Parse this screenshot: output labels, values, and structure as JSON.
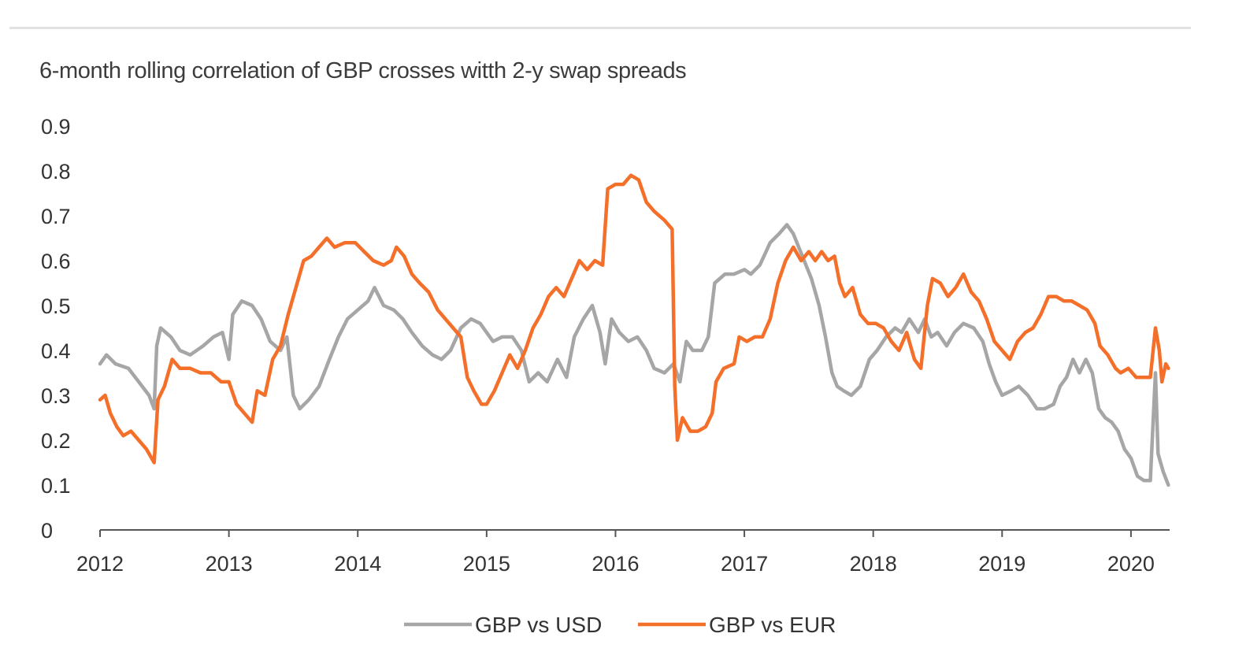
{
  "chart_data": {
    "type": "line",
    "title": "6-month rolling correlation of GBP crosses witth 2-y swap spreads",
    "xlabel": "",
    "ylabel": "",
    "xlim": [
      2012.0,
      2020.3
    ],
    "ylim": [
      0,
      0.9
    ],
    "x_ticks": [
      2012,
      2013,
      2014,
      2015,
      2016,
      2017,
      2018,
      2019,
      2020
    ],
    "x_tick_labels": [
      "2012",
      "2013",
      "2014",
      "2015",
      "2016",
      "2017",
      "2018",
      "2019",
      "2020"
    ],
    "y_ticks": [
      0,
      0.1,
      0.2,
      0.3,
      0.4,
      0.5,
      0.6,
      0.7,
      0.8,
      0.9
    ],
    "y_tick_labels": [
      "0",
      "0.1",
      "0.2",
      "0.3",
      "0.4",
      "0.5",
      "0.6",
      "0.7",
      "0.8",
      "0.9"
    ],
    "grid": false,
    "legend_position": "bottom",
    "series": [
      {
        "name": "GBP vs USD",
        "color": "#a6a6a6",
        "points": [
          [
            2012.0,
            0.37
          ],
          [
            2012.05,
            0.39
          ],
          [
            2012.12,
            0.37
          ],
          [
            2012.22,
            0.36
          ],
          [
            2012.3,
            0.33
          ],
          [
            2012.38,
            0.3
          ],
          [
            2012.42,
            0.27
          ],
          [
            2012.44,
            0.41
          ],
          [
            2012.47,
            0.45
          ],
          [
            2012.55,
            0.43
          ],
          [
            2012.62,
            0.4
          ],
          [
            2012.7,
            0.39
          ],
          [
            2012.8,
            0.41
          ],
          [
            2012.88,
            0.43
          ],
          [
            2012.95,
            0.44
          ],
          [
            2013.0,
            0.38
          ],
          [
            2013.03,
            0.48
          ],
          [
            2013.1,
            0.51
          ],
          [
            2013.18,
            0.5
          ],
          [
            2013.25,
            0.47
          ],
          [
            2013.32,
            0.42
          ],
          [
            2013.4,
            0.4
          ],
          [
            2013.45,
            0.43
          ],
          [
            2013.5,
            0.3
          ],
          [
            2013.55,
            0.27
          ],
          [
            2013.62,
            0.29
          ],
          [
            2013.7,
            0.32
          ],
          [
            2013.78,
            0.38
          ],
          [
            2013.85,
            0.43
          ],
          [
            2013.92,
            0.47
          ],
          [
            2014.0,
            0.49
          ],
          [
            2014.08,
            0.51
          ],
          [
            2014.13,
            0.54
          ],
          [
            2014.2,
            0.5
          ],
          [
            2014.28,
            0.49
          ],
          [
            2014.35,
            0.47
          ],
          [
            2014.42,
            0.44
          ],
          [
            2014.5,
            0.41
          ],
          [
            2014.58,
            0.39
          ],
          [
            2014.65,
            0.38
          ],
          [
            2014.72,
            0.4
          ],
          [
            2014.8,
            0.45
          ],
          [
            2014.88,
            0.47
          ],
          [
            2014.95,
            0.46
          ],
          [
            2015.0,
            0.44
          ],
          [
            2015.05,
            0.42
          ],
          [
            2015.12,
            0.43
          ],
          [
            2015.2,
            0.43
          ],
          [
            2015.27,
            0.4
          ],
          [
            2015.33,
            0.33
          ],
          [
            2015.4,
            0.35
          ],
          [
            2015.47,
            0.33
          ],
          [
            2015.55,
            0.38
          ],
          [
            2015.62,
            0.34
          ],
          [
            2015.68,
            0.43
          ],
          [
            2015.75,
            0.47
          ],
          [
            2015.82,
            0.5
          ],
          [
            2015.88,
            0.44
          ],
          [
            2015.92,
            0.37
          ],
          [
            2015.97,
            0.47
          ],
          [
            2016.03,
            0.44
          ],
          [
            2016.1,
            0.42
          ],
          [
            2016.17,
            0.43
          ],
          [
            2016.24,
            0.4
          ],
          [
            2016.3,
            0.36
          ],
          [
            2016.38,
            0.35
          ],
          [
            2016.45,
            0.37
          ],
          [
            2016.5,
            0.33
          ],
          [
            2016.55,
            0.42
          ],
          [
            2016.6,
            0.4
          ],
          [
            2016.67,
            0.4
          ],
          [
            2016.72,
            0.43
          ],
          [
            2016.77,
            0.55
          ],
          [
            2016.85,
            0.57
          ],
          [
            2016.92,
            0.57
          ],
          [
            2017.0,
            0.58
          ],
          [
            2017.05,
            0.57
          ],
          [
            2017.12,
            0.59
          ],
          [
            2017.2,
            0.64
          ],
          [
            2017.27,
            0.66
          ],
          [
            2017.33,
            0.68
          ],
          [
            2017.38,
            0.66
          ],
          [
            2017.45,
            0.61
          ],
          [
            2017.52,
            0.56
          ],
          [
            2017.58,
            0.5
          ],
          [
            2017.63,
            0.43
          ],
          [
            2017.68,
            0.35
          ],
          [
            2017.72,
            0.32
          ],
          [
            2017.77,
            0.31
          ],
          [
            2017.83,
            0.3
          ],
          [
            2017.9,
            0.32
          ],
          [
            2017.97,
            0.38
          ],
          [
            2018.03,
            0.4
          ],
          [
            2018.1,
            0.43
          ],
          [
            2018.17,
            0.45
          ],
          [
            2018.22,
            0.44
          ],
          [
            2018.28,
            0.47
          ],
          [
            2018.35,
            0.44
          ],
          [
            2018.4,
            0.47
          ],
          [
            2018.45,
            0.43
          ],
          [
            2018.5,
            0.44
          ],
          [
            2018.57,
            0.41
          ],
          [
            2018.63,
            0.44
          ],
          [
            2018.7,
            0.46
          ],
          [
            2018.78,
            0.45
          ],
          [
            2018.85,
            0.42
          ],
          [
            2018.9,
            0.37
          ],
          [
            2018.95,
            0.33
          ],
          [
            2019.0,
            0.3
          ],
          [
            2019.07,
            0.31
          ],
          [
            2019.13,
            0.32
          ],
          [
            2019.2,
            0.3
          ],
          [
            2019.27,
            0.27
          ],
          [
            2019.33,
            0.27
          ],
          [
            2019.4,
            0.28
          ],
          [
            2019.45,
            0.32
          ],
          [
            2019.5,
            0.34
          ],
          [
            2019.55,
            0.38
          ],
          [
            2019.6,
            0.35
          ],
          [
            2019.65,
            0.38
          ],
          [
            2019.7,
            0.35
          ],
          [
            2019.75,
            0.27
          ],
          [
            2019.8,
            0.25
          ],
          [
            2019.85,
            0.24
          ],
          [
            2019.9,
            0.22
          ],
          [
            2019.95,
            0.18
          ],
          [
            2020.0,
            0.16
          ],
          [
            2020.05,
            0.12
          ],
          [
            2020.1,
            0.11
          ],
          [
            2020.15,
            0.11
          ],
          [
            2020.19,
            0.35
          ],
          [
            2020.21,
            0.17
          ],
          [
            2020.25,
            0.13
          ],
          [
            2020.29,
            0.1
          ]
        ]
      },
      {
        "name": "GBP vs EUR",
        "color": "#f4702a",
        "points": [
          [
            2012.0,
            0.29
          ],
          [
            2012.04,
            0.3
          ],
          [
            2012.08,
            0.26
          ],
          [
            2012.13,
            0.23
          ],
          [
            2012.18,
            0.21
          ],
          [
            2012.24,
            0.22
          ],
          [
            2012.3,
            0.2
          ],
          [
            2012.36,
            0.18
          ],
          [
            2012.42,
            0.15
          ],
          [
            2012.45,
            0.29
          ],
          [
            2012.5,
            0.32
          ],
          [
            2012.56,
            0.38
          ],
          [
            2012.62,
            0.36
          ],
          [
            2012.7,
            0.36
          ],
          [
            2012.78,
            0.35
          ],
          [
            2012.86,
            0.35
          ],
          [
            2012.94,
            0.33
          ],
          [
            2013.0,
            0.33
          ],
          [
            2013.06,
            0.28
          ],
          [
            2013.12,
            0.26
          ],
          [
            2013.18,
            0.24
          ],
          [
            2013.22,
            0.31
          ],
          [
            2013.28,
            0.3
          ],
          [
            2013.34,
            0.38
          ],
          [
            2013.4,
            0.41
          ],
          [
            2013.46,
            0.48
          ],
          [
            2013.52,
            0.54
          ],
          [
            2013.58,
            0.6
          ],
          [
            2013.64,
            0.61
          ],
          [
            2013.7,
            0.63
          ],
          [
            2013.76,
            0.65
          ],
          [
            2013.82,
            0.63
          ],
          [
            2013.9,
            0.64
          ],
          [
            2013.98,
            0.64
          ],
          [
            2014.05,
            0.62
          ],
          [
            2014.12,
            0.6
          ],
          [
            2014.2,
            0.59
          ],
          [
            2014.26,
            0.6
          ],
          [
            2014.3,
            0.63
          ],
          [
            2014.36,
            0.61
          ],
          [
            2014.42,
            0.57
          ],
          [
            2014.48,
            0.55
          ],
          [
            2014.55,
            0.53
          ],
          [
            2014.62,
            0.49
          ],
          [
            2014.68,
            0.47
          ],
          [
            2014.74,
            0.45
          ],
          [
            2014.8,
            0.43
          ],
          [
            2014.85,
            0.34
          ],
          [
            2014.9,
            0.31
          ],
          [
            2014.96,
            0.28
          ],
          [
            2015.0,
            0.28
          ],
          [
            2015.06,
            0.31
          ],
          [
            2015.12,
            0.35
          ],
          [
            2015.18,
            0.39
          ],
          [
            2015.24,
            0.36
          ],
          [
            2015.3,
            0.4
          ],
          [
            2015.36,
            0.45
          ],
          [
            2015.42,
            0.48
          ],
          [
            2015.48,
            0.52
          ],
          [
            2015.54,
            0.54
          ],
          [
            2015.6,
            0.52
          ],
          [
            2015.66,
            0.56
          ],
          [
            2015.72,
            0.6
          ],
          [
            2015.78,
            0.58
          ],
          [
            2015.84,
            0.6
          ],
          [
            2015.9,
            0.59
          ],
          [
            2015.94,
            0.76
          ],
          [
            2016.0,
            0.77
          ],
          [
            2016.06,
            0.77
          ],
          [
            2016.12,
            0.79
          ],
          [
            2016.18,
            0.78
          ],
          [
            2016.24,
            0.73
          ],
          [
            2016.3,
            0.71
          ],
          [
            2016.38,
            0.69
          ],
          [
            2016.44,
            0.67
          ],
          [
            2016.46,
            0.32
          ],
          [
            2016.48,
            0.2
          ],
          [
            2016.52,
            0.25
          ],
          [
            2016.58,
            0.22
          ],
          [
            2016.64,
            0.22
          ],
          [
            2016.7,
            0.23
          ],
          [
            2016.75,
            0.26
          ],
          [
            2016.78,
            0.33
          ],
          [
            2016.84,
            0.36
          ],
          [
            2016.92,
            0.37
          ],
          [
            2016.96,
            0.43
          ],
          [
            2017.02,
            0.42
          ],
          [
            2017.08,
            0.43
          ],
          [
            2017.14,
            0.43
          ],
          [
            2017.2,
            0.47
          ],
          [
            2017.26,
            0.55
          ],
          [
            2017.32,
            0.6
          ],
          [
            2017.38,
            0.63
          ],
          [
            2017.44,
            0.6
          ],
          [
            2017.5,
            0.62
          ],
          [
            2017.55,
            0.6
          ],
          [
            2017.6,
            0.62
          ],
          [
            2017.65,
            0.6
          ],
          [
            2017.7,
            0.61
          ],
          [
            2017.74,
            0.55
          ],
          [
            2017.78,
            0.52
          ],
          [
            2017.84,
            0.54
          ],
          [
            2017.9,
            0.48
          ],
          [
            2017.96,
            0.46
          ],
          [
            2018.02,
            0.46
          ],
          [
            2018.08,
            0.45
          ],
          [
            2018.14,
            0.42
          ],
          [
            2018.2,
            0.4
          ],
          [
            2018.26,
            0.44
          ],
          [
            2018.32,
            0.38
          ],
          [
            2018.37,
            0.36
          ],
          [
            2018.42,
            0.5
          ],
          [
            2018.46,
            0.56
          ],
          [
            2018.52,
            0.55
          ],
          [
            2018.58,
            0.52
          ],
          [
            2018.64,
            0.54
          ],
          [
            2018.7,
            0.57
          ],
          [
            2018.76,
            0.53
          ],
          [
            2018.82,
            0.51
          ],
          [
            2018.88,
            0.47
          ],
          [
            2018.94,
            0.42
          ],
          [
            2019.0,
            0.4
          ],
          [
            2019.06,
            0.38
          ],
          [
            2019.12,
            0.42
          ],
          [
            2019.18,
            0.44
          ],
          [
            2019.24,
            0.45
          ],
          [
            2019.3,
            0.48
          ],
          [
            2019.36,
            0.52
          ],
          [
            2019.42,
            0.52
          ],
          [
            2019.48,
            0.51
          ],
          [
            2019.54,
            0.51
          ],
          [
            2019.6,
            0.5
          ],
          [
            2019.66,
            0.49
          ],
          [
            2019.72,
            0.46
          ],
          [
            2019.76,
            0.41
          ],
          [
            2019.82,
            0.39
          ],
          [
            2019.88,
            0.36
          ],
          [
            2019.92,
            0.35
          ],
          [
            2019.98,
            0.36
          ],
          [
            2020.04,
            0.34
          ],
          [
            2020.1,
            0.34
          ],
          [
            2020.15,
            0.34
          ],
          [
            2020.19,
            0.45
          ],
          [
            2020.22,
            0.4
          ],
          [
            2020.24,
            0.33
          ],
          [
            2020.27,
            0.37
          ],
          [
            2020.29,
            0.36
          ]
        ]
      }
    ]
  }
}
